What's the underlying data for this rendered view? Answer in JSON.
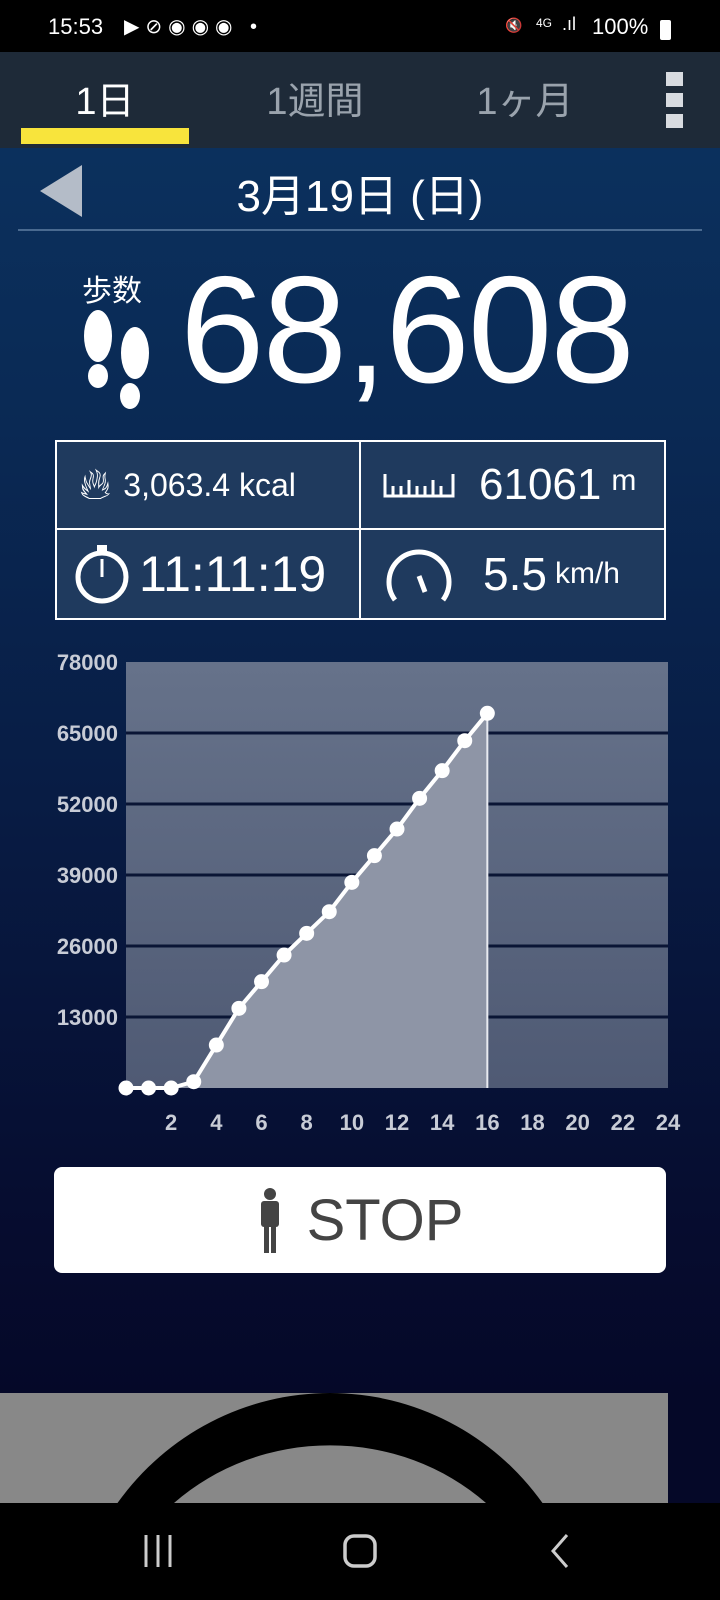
{
  "status_bar": {
    "time": "15:53",
    "battery": "100%",
    "network": "4G"
  },
  "tabs": [
    {
      "label": "1日",
      "active": true
    },
    {
      "label": "1週間",
      "active": false
    },
    {
      "label": "1ヶ月",
      "active": false
    }
  ],
  "colors": {
    "accent": "#f8e43c",
    "chart_fill": "#8e95a6",
    "plot_bg": "#5d6a82"
  },
  "date": "3月19日 (日)",
  "steps": {
    "label": "歩数",
    "value": "68,608"
  },
  "stats": {
    "calories": "3,063.4 kcal",
    "distance_value": "61061",
    "distance_unit": "m",
    "duration": "11:11:19",
    "speed_value": "5.5",
    "speed_unit": "km/h"
  },
  "stop_button": "STOP",
  "chart_data": {
    "type": "area",
    "x": [
      0,
      1,
      2,
      3,
      4,
      5,
      6,
      7,
      8,
      9,
      10,
      11,
      12,
      13,
      14,
      15,
      16
    ],
    "values": [
      0,
      0,
      0,
      1150,
      7870,
      14590,
      19470,
      24350,
      28320,
      32280,
      37660,
      42540,
      47420,
      53040,
      58100,
      63590,
      68608
    ],
    "xlim": [
      0,
      24
    ],
    "ylim": [
      0,
      78000
    ],
    "xticks": [
      "2",
      "4",
      "6",
      "8",
      "10",
      "12",
      "14",
      "16",
      "18",
      "20",
      "22",
      "24"
    ],
    "yticks": [
      "13000",
      "26000",
      "39000",
      "52000",
      "65000",
      "78000"
    ],
    "grid": true
  }
}
